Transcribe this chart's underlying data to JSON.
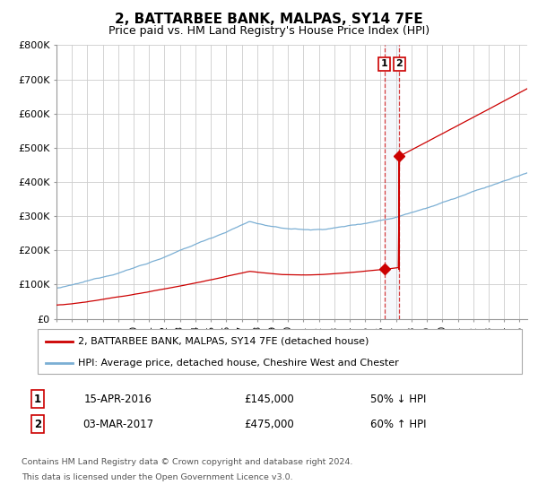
{
  "title": "2, BATTARBEE BANK, MALPAS, SY14 7FE",
  "subtitle": "Price paid vs. HM Land Registry's House Price Index (HPI)",
  "title_fontsize": 11,
  "subtitle_fontsize": 9,
  "xmin": 1995.0,
  "xmax": 2025.5,
  "ymin": 0,
  "ymax": 800000,
  "yticks": [
    0,
    100000,
    200000,
    300000,
    400000,
    500000,
    600000,
    700000,
    800000
  ],
  "ytick_labels": [
    "£0",
    "£100K",
    "£200K",
    "£300K",
    "£400K",
    "£500K",
    "£600K",
    "£700K",
    "£800K"
  ],
  "red_color": "#cc0000",
  "blue_color": "#7bafd4",
  "vline1_x": 2016.29,
  "vline2_x": 2017.17,
  "marker1_x": 2016.29,
  "marker1_y": 145000,
  "marker2_x": 2017.17,
  "marker2_y": 475000,
  "legend_red": "2, BATTARBEE BANK, MALPAS, SY14 7FE (detached house)",
  "legend_blue": "HPI: Average price, detached house, Cheshire West and Chester",
  "footnote1": "Contains HM Land Registry data © Crown copyright and database right 2024.",
  "footnote2": "This data is licensed under the Open Government Licence v3.0.",
  "table_row1": [
    "1",
    "15-APR-2016",
    "£145,000",
    "50% ↓ HPI"
  ],
  "table_row2": [
    "2",
    "03-MAR-2017",
    "£475,000",
    "60% ↑ HPI"
  ],
  "background_color": "#ffffff",
  "grid_color": "#cccccc"
}
